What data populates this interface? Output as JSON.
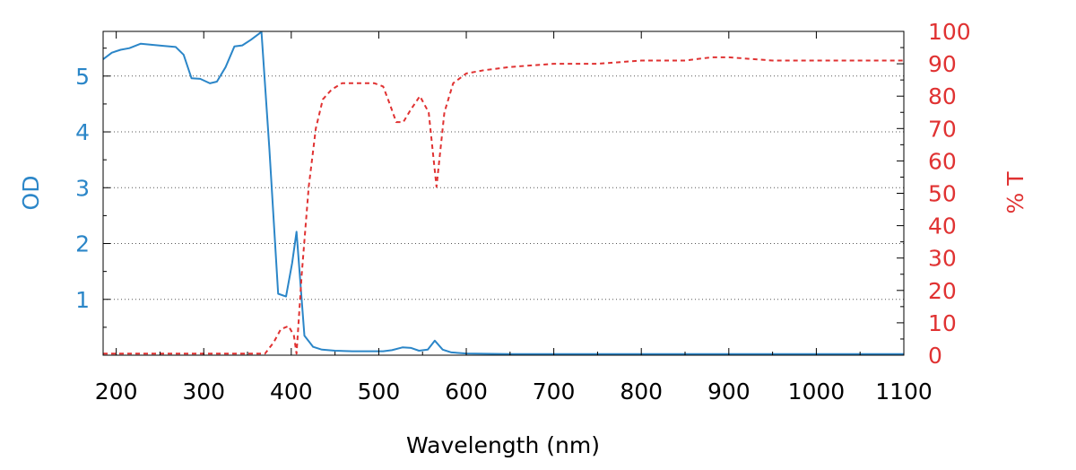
{
  "chart_data": {
    "type": "line",
    "title": "",
    "xlabel": "Wavelength (nm)",
    "ylabel_left": "OD",
    "ylabel_right": "% T",
    "xlim": [
      185,
      1100
    ],
    "ylim_left": [
      0,
      5.8
    ],
    "ylim_right": [
      0,
      100
    ],
    "xticks": [
      200,
      300,
      400,
      500,
      600,
      700,
      800,
      900,
      1000,
      1100
    ],
    "yticks_left": [
      1,
      2,
      3,
      4,
      5
    ],
    "yticks_right": [
      0,
      10,
      20,
      30,
      40,
      50,
      60,
      70,
      80,
      90,
      100
    ],
    "grid": true,
    "legend": "none",
    "series": [
      {
        "axis": "left",
        "color": "#2b86c8",
        "dash": "solid",
        "x": [
          185,
          195,
          205,
          215,
          228,
          240,
          255,
          268,
          277,
          286,
          296,
          307,
          315,
          325,
          335,
          344,
          354,
          366,
          375,
          385,
          394,
          401,
          406,
          415,
          425,
          435,
          450,
          470,
          490,
          505,
          515,
          527,
          537,
          546,
          556,
          564,
          573,
          583,
          600,
          650,
          700,
          800,
          900,
          1000,
          1100
        ],
        "y": [
          5.3,
          5.42,
          5.47,
          5.5,
          5.58,
          5.56,
          5.54,
          5.52,
          5.38,
          4.96,
          4.95,
          4.87,
          4.9,
          5.16,
          5.53,
          5.55,
          5.65,
          5.79,
          3.7,
          1.1,
          1.05,
          1.65,
          2.21,
          0.35,
          0.15,
          0.1,
          0.08,
          0.07,
          0.07,
          0.07,
          0.09,
          0.14,
          0.13,
          0.08,
          0.1,
          0.26,
          0.1,
          0.05,
          0.03,
          0.02,
          0.02,
          0.02,
          0.02,
          0.02,
          0.02
        ]
      },
      {
        "axis": "right",
        "color": "#e03232",
        "dash": "dashed",
        "x": [
          185,
          370,
          380,
          388,
          397,
          403,
          406,
          412,
          420,
          428,
          436,
          446,
          458,
          470,
          482,
          495,
          505,
          512,
          520,
          528,
          537,
          547,
          557,
          566,
          575,
          585,
          600,
          620,
          650,
          700,
          750,
          800,
          850,
          880,
          900,
          950,
          1000,
          1030,
          1060,
          1090,
          1100
        ],
        "y": [
          0.5,
          0.5,
          4,
          8,
          9,
          6,
          0.5,
          25,
          52,
          70,
          79,
          82,
          84,
          84,
          84,
          84,
          83,
          78,
          72,
          72,
          76,
          80,
          75,
          52,
          75,
          84,
          87,
          88,
          89,
          90,
          90,
          91,
          91,
          92,
          92,
          91,
          91,
          91,
          91,
          91,
          91
        ]
      }
    ]
  }
}
